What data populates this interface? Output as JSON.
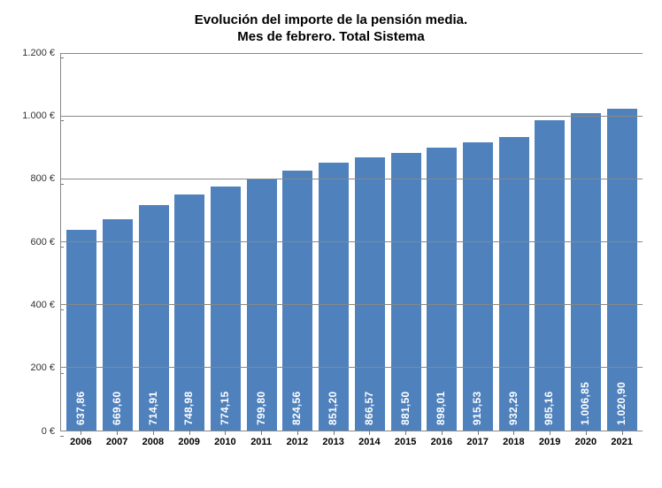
{
  "chart": {
    "type": "bar",
    "title_line1": "Evolución del importe de la pensión media.",
    "title_line2": "Mes de febrero. Total Sistema",
    "title_fontsize": 15,
    "title_color": "#000000",
    "categories": [
      "2006",
      "2007",
      "2008",
      "2009",
      "2010",
      "2011",
      "2012",
      "2013",
      "2014",
      "2015",
      "2016",
      "2017",
      "2018",
      "2019",
      "2020",
      "2021"
    ],
    "values": [
      637.86,
      669.6,
      714.91,
      748.98,
      774.15,
      799.8,
      824.56,
      851.2,
      866.57,
      881.5,
      898.01,
      915.53,
      932.29,
      985.16,
      1006.85,
      1020.9
    ],
    "value_labels": [
      "637,86",
      "669,60",
      "714,91",
      "748,98",
      "774,15",
      "799,80",
      "824,56",
      "851,20",
      "866,57",
      "881,50",
      "898,01",
      "915,53",
      "932,29",
      "985,16",
      "1.006,85",
      "1.020,90"
    ],
    "bar_color": "#4f81bd",
    "value_label_color": "#ffffff",
    "value_label_fontsize": 12,
    "value_label_orientation": "vertical",
    "background_color": "#ffffff",
    "axis_color": "#888888",
    "grid_color": "#888888",
    "ylim": [
      0,
      1200
    ],
    "ytick_step": 200,
    "ytick_labels": [
      "0 €",
      "200 €",
      "400 €",
      "600 €",
      "800 €",
      "1.000 €",
      "1.200 €"
    ],
    "ytick_values": [
      0,
      200,
      400,
      600,
      800,
      1000,
      1200
    ],
    "xlabel_fontsize": 11,
    "xlabel_fontweight": "bold",
    "ylabel_fontsize": 11,
    "bar_width_ratio": 0.82,
    "aspect_w": 748,
    "aspect_h": 552
  }
}
